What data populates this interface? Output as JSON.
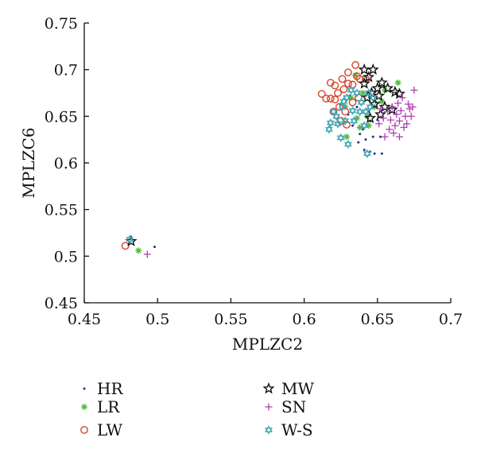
{
  "chart_data": {
    "type": "scatter",
    "title": "",
    "xlabel": "MPLZC2",
    "ylabel": "MPLZC6",
    "xlim": [
      0.45,
      0.7
    ],
    "ylim": [
      0.45,
      0.75
    ],
    "xticks": [
      "0.45",
      "0.5",
      "0.55",
      "0.6",
      "0.65",
      "0.7"
    ],
    "yticks": [
      "0.45",
      "0.5",
      "0.55",
      "0.6",
      "0.65",
      "0.7",
      "0.75"
    ],
    "grid": false,
    "legend_position": "bottom",
    "series": [
      {
        "name": "HR",
        "marker": "dot",
        "color": "#2b2f8a",
        "points": [
          [
            0.498,
            0.51
          ],
          [
            0.637,
            0.622
          ],
          [
            0.641,
            0.614
          ],
          [
            0.645,
            0.612
          ],
          [
            0.648,
            0.61
          ],
          [
            0.653,
            0.61
          ],
          [
            0.642,
            0.625
          ],
          [
            0.638,
            0.631
          ],
          [
            0.647,
            0.628
          ],
          [
            0.652,
            0.628
          ],
          [
            0.633,
            0.64
          ],
          [
            0.64,
            0.636
          ],
          [
            0.645,
            0.645
          ],
          [
            0.63,
            0.652
          ],
          [
            0.636,
            0.66
          ],
          [
            0.644,
            0.655
          ],
          [
            0.649,
            0.665
          ],
          [
            0.625,
            0.663
          ],
          [
            0.631,
            0.672
          ],
          [
            0.65,
            0.646
          ]
        ]
      },
      {
        "name": "LR",
        "marker": "asterisk",
        "color": "#4fb83a",
        "points": [
          [
            0.487,
            0.506
          ],
          [
            0.664,
            0.686
          ],
          [
            0.635,
            0.694
          ],
          [
            0.629,
            0.628
          ],
          [
            0.638,
            0.638
          ],
          [
            0.643,
            0.65
          ],
          [
            0.648,
            0.66
          ],
          [
            0.653,
            0.666
          ],
          [
            0.632,
            0.67
          ],
          [
            0.64,
            0.675
          ],
          [
            0.628,
            0.66
          ],
          [
            0.655,
            0.678
          ],
          [
            0.644,
            0.64
          ],
          [
            0.636,
            0.648
          ]
        ]
      },
      {
        "name": "LW",
        "marker": "circle",
        "color": "#d4442a",
        "points": [
          [
            0.478,
            0.511
          ],
          [
            0.635,
            0.705
          ],
          [
            0.612,
            0.674
          ],
          [
            0.615,
            0.669
          ],
          [
            0.618,
            0.669
          ],
          [
            0.618,
            0.686
          ],
          [
            0.621,
            0.683
          ],
          [
            0.626,
            0.69
          ],
          [
            0.63,
            0.685
          ],
          [
            0.63,
            0.697
          ],
          [
            0.633,
            0.684
          ],
          [
            0.636,
            0.693
          ],
          [
            0.638,
            0.69
          ],
          [
            0.627,
            0.679
          ],
          [
            0.623,
            0.675
          ],
          [
            0.621,
            0.668
          ],
          [
            0.624,
            0.66
          ],
          [
            0.628,
            0.655
          ],
          [
            0.62,
            0.655
          ],
          [
            0.633,
            0.665
          ],
          [
            0.637,
            0.67
          ],
          [
            0.642,
            0.69
          ],
          [
            0.625,
            0.645
          ],
          [
            0.629,
            0.641
          ]
        ]
      },
      {
        "name": "MW",
        "marker": "star",
        "color": "#111111",
        "points": [
          [
            0.482,
            0.516
          ],
          [
            0.641,
            0.7
          ],
          [
            0.647,
            0.7
          ],
          [
            0.644,
            0.692
          ],
          [
            0.641,
            0.685
          ],
          [
            0.65,
            0.68
          ],
          [
            0.653,
            0.686
          ],
          [
            0.657,
            0.68
          ],
          [
            0.662,
            0.676
          ],
          [
            0.665,
            0.674
          ],
          [
            0.646,
            0.675
          ],
          [
            0.643,
            0.67
          ],
          [
            0.655,
            0.66
          ],
          [
            0.652,
            0.652
          ],
          [
            0.66,
            0.657
          ],
          [
            0.645,
            0.648
          ],
          [
            0.648,
            0.663
          ],
          [
            0.651,
            0.672
          ]
        ]
      },
      {
        "name": "SN",
        "marker": "plus",
        "color": "#b040b0",
        "points": [
          [
            0.493,
            0.502
          ],
          [
            0.675,
            0.678
          ],
          [
            0.66,
            0.66
          ],
          [
            0.664,
            0.664
          ],
          [
            0.667,
            0.67
          ],
          [
            0.672,
            0.658
          ],
          [
            0.674,
            0.66
          ],
          [
            0.669,
            0.65
          ],
          [
            0.665,
            0.645
          ],
          [
            0.662,
            0.64
          ],
          [
            0.658,
            0.636
          ],
          [
            0.655,
            0.628
          ],
          [
            0.661,
            0.632
          ],
          [
            0.665,
            0.628
          ],
          [
            0.67,
            0.642
          ],
          [
            0.673,
            0.65
          ],
          [
            0.657,
            0.655
          ],
          [
            0.654,
            0.648
          ],
          [
            0.651,
            0.642
          ],
          [
            0.668,
            0.638
          ],
          [
            0.663,
            0.652
          ],
          [
            0.659,
            0.646
          ],
          [
            0.671,
            0.663
          ],
          [
            0.666,
            0.656
          ],
          [
            0.652,
            0.658
          ]
        ]
      },
      {
        "name": "W-S",
        "marker": "hexagram",
        "color": "#40a8b4",
        "points": [
          [
            0.481,
            0.518
          ],
          [
            0.618,
            0.643
          ],
          [
            0.625,
            0.627
          ],
          [
            0.63,
            0.62
          ],
          [
            0.643,
            0.61
          ],
          [
            0.617,
            0.636
          ],
          [
            0.622,
            0.65
          ],
          [
            0.626,
            0.66
          ],
          [
            0.629,
            0.67
          ],
          [
            0.632,
            0.678
          ],
          [
            0.636,
            0.675
          ],
          [
            0.639,
            0.665
          ],
          [
            0.642,
            0.655
          ],
          [
            0.645,
            0.66
          ],
          [
            0.647,
            0.67
          ],
          [
            0.641,
            0.64
          ],
          [
            0.634,
            0.645
          ],
          [
            0.628,
            0.645
          ],
          [
            0.623,
            0.642
          ],
          [
            0.638,
            0.655
          ],
          [
            0.644,
            0.675
          ],
          [
            0.633,
            0.656
          ],
          [
            0.627,
            0.666
          ],
          [
            0.62,
            0.655
          ]
        ]
      }
    ]
  }
}
